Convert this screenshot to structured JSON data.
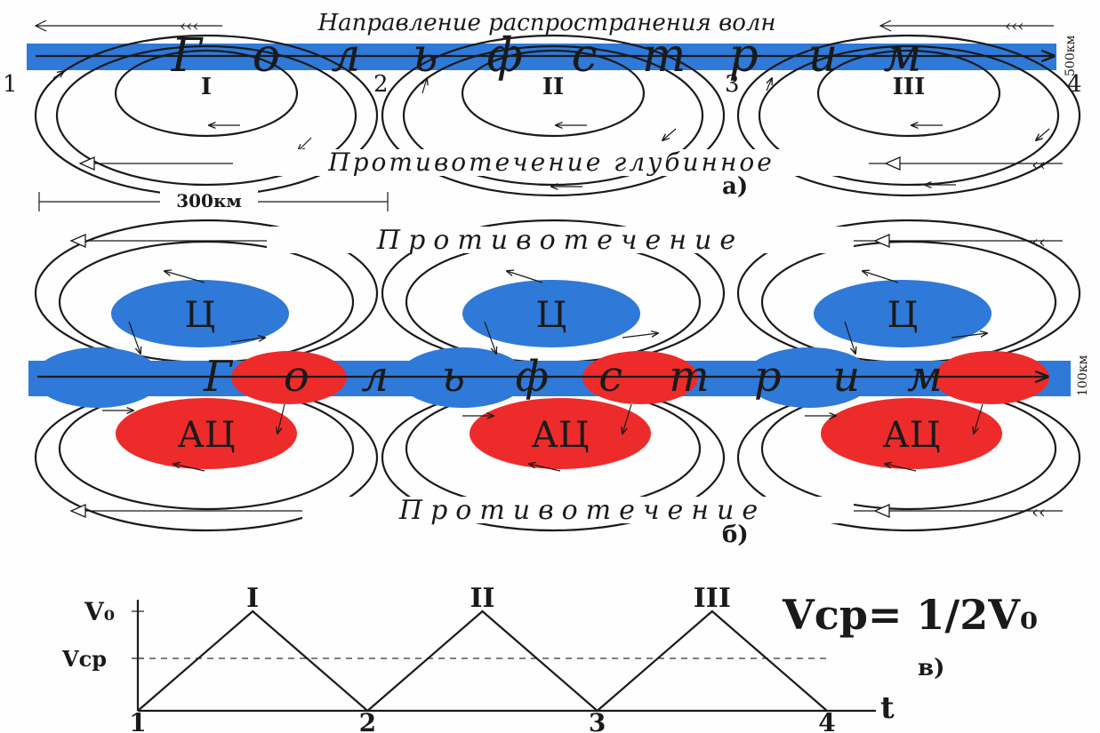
{
  "panel_a": {
    "wave_direction": "Направление распространения волн",
    "stream_title": "Гольфстрим",
    "stream_letters": [
      "Г",
      "о",
      "л",
      "ь",
      "ф",
      "с",
      "т",
      "р",
      "и",
      "м"
    ],
    "stream_width": "500км",
    "points": [
      "1",
      "2",
      "3",
      "4"
    ],
    "cells": [
      "I",
      "II",
      "III"
    ],
    "countercurrent": "Противотечение глубинное",
    "distance": "300км",
    "label": "а)"
  },
  "panel_b": {
    "countercurrent_top": "Противотечение",
    "countercurrent_bottom": "Противотечение",
    "stream_title": "Гольфстрим",
    "stream_letters": [
      "Г",
      "о",
      "л",
      "ь",
      "ф",
      "с",
      "т",
      "р",
      "и",
      "м"
    ],
    "stream_width": "100км",
    "cyclone": "Ц",
    "anticyclone": "АЦ",
    "label": "б)"
  },
  "panel_c": {
    "y_max_label": "V₀",
    "y_mid_label": "Vср",
    "formula": "Vср= 1/2V₀",
    "x_axis_label": "t",
    "x_points": [
      "1",
      "2",
      "3",
      "4"
    ],
    "peaks": [
      "I",
      "II",
      "III"
    ],
    "label": "в)",
    "profile": {
      "t": [
        1,
        1.5,
        2,
        2.5,
        3,
        3.5,
        4
      ],
      "v_fraction_of_V0": [
        0,
        1,
        0,
        1,
        0,
        1,
        0
      ]
    },
    "mean_fraction_of_V0": 0.5
  },
  "colors": {
    "stream_blue": "#2f79d8",
    "cyclone_blue": "#2f79d8",
    "anticyclone_red": "#ee2b2b",
    "ink": "#1a1a1a"
  }
}
